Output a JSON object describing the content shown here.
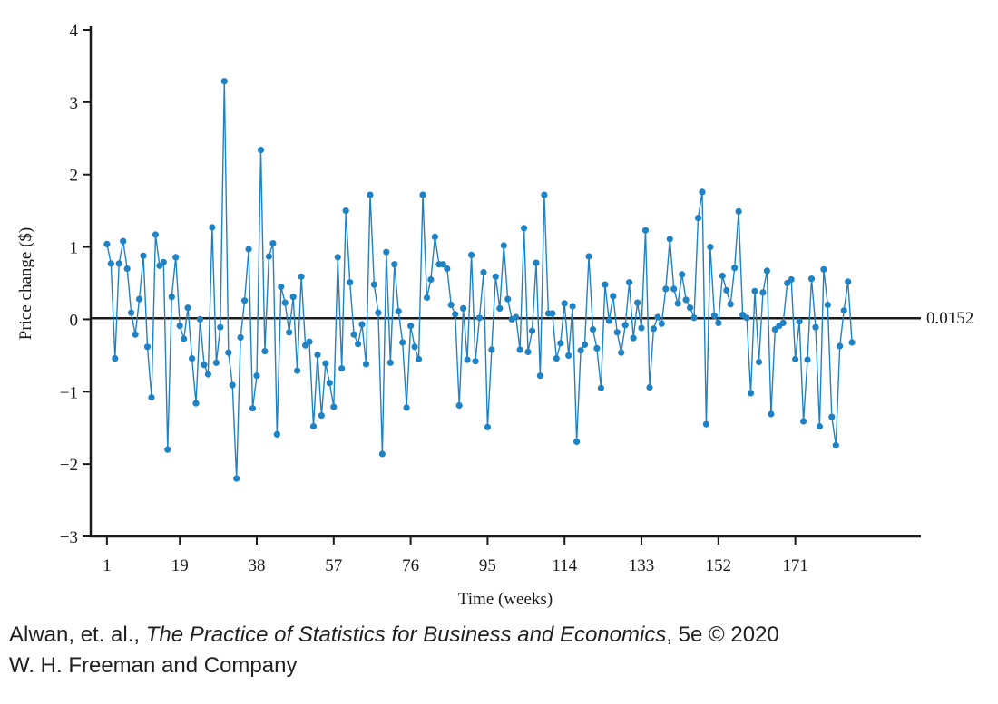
{
  "chart_data": {
    "type": "line",
    "xlabel": "Time (weeks)",
    "ylabel": "Price change ($)",
    "xlim": [
      -3,
      202
    ],
    "ylim": [
      -3,
      4
    ],
    "x_ticks": [
      1,
      19,
      38,
      57,
      76,
      95,
      114,
      133,
      152,
      171
    ],
    "y_ticks": [
      -3,
      -2,
      -1,
      0,
      1,
      2,
      3,
      4
    ],
    "y_tick_labels": [
      "−3",
      "−2",
      "−1",
      "0",
      "1",
      "2",
      "3",
      "4"
    ],
    "reference_line": {
      "y": 0.0152,
      "label": "0.0152"
    },
    "series_color": "#1f82c4",
    "series": [
      {
        "values": [
          1.04,
          0.77,
          -0.54,
          0.77,
          1.08,
          0.7,
          0.09,
          -0.21,
          0.28,
          0.88,
          -0.38,
          -1.08,
          1.17,
          0.74,
          0.79,
          -1.8,
          0.31,
          0.86,
          -0.09,
          -0.27,
          0.16,
          -0.54,
          -1.16,
          0.0,
          -0.63,
          -0.76,
          1.27,
          -0.6,
          -0.11,
          3.29,
          -0.46,
          -0.91,
          -2.2,
          -0.25,
          0.26,
          0.97,
          -1.23,
          -0.78,
          2.34,
          -0.44,
          0.87,
          1.05,
          -1.59,
          0.45,
          0.23,
          -0.18,
          0.31,
          -0.71,
          0.59,
          -0.36,
          -0.31,
          -1.48,
          -0.49,
          -1.33,
          -0.61,
          -0.88,
          -1.21,
          0.86,
          -0.68,
          1.5,
          0.51,
          -0.21,
          -0.34,
          -0.07,
          -0.62,
          1.72,
          0.48,
          0.09,
          -1.86,
          0.93,
          -0.6,
          0.76,
          0.11,
          -0.32,
          -1.22,
          -0.09,
          -0.38,
          -0.55,
          1.72,
          0.3,
          0.55,
          1.14,
          0.76,
          0.76,
          0.7,
          0.2,
          0.07,
          -1.19,
          0.15,
          -0.56,
          0.89,
          -0.58,
          0.02,
          0.65,
          -1.49,
          -0.42,
          0.59,
          0.15,
          1.02,
          0.28,
          0.0,
          0.03,
          -0.42,
          1.26,
          -0.45,
          -0.16,
          0.78,
          -0.78,
          1.72,
          0.08,
          0.08,
          -0.54,
          -0.33,
          0.22,
          -0.5,
          0.18,
          -1.69,
          -0.43,
          -0.35,
          0.87,
          -0.14,
          -0.4,
          -0.95,
          0.48,
          -0.02,
          0.32,
          -0.18,
          -0.46,
          -0.08,
          0.51,
          -0.26,
          0.23,
          -0.12,
          1.23,
          -0.94,
          -0.13,
          0.03,
          -0.06,
          0.42,
          1.11,
          0.42,
          0.22,
          0.62,
          0.27,
          0.16,
          0.02,
          1.4,
          1.76,
          -1.45,
          1.0,
          0.05,
          -0.05,
          0.6,
          0.4,
          0.21,
          0.71,
          1.49,
          0.06,
          0.02,
          -1.02,
          0.39,
          -0.59,
          0.37,
          0.67,
          -1.31,
          -0.14,
          -0.09,
          -0.05,
          0.5,
          0.55,
          -0.55,
          -0.03,
          -1.41,
          -0.56,
          0.56,
          -0.11,
          -1.48,
          0.69,
          0.2,
          -1.35,
          -1.74,
          -0.37,
          0.12,
          0.52,
          -0.32
        ]
      }
    ]
  },
  "caption": {
    "line1_prefix": "Alwan, et. al., ",
    "line1_title": "The Practice of Statistics for Business and Economics",
    "line1_suffix": ", 5e © 2020",
    "line2": "W. H. Freeman and Company"
  }
}
